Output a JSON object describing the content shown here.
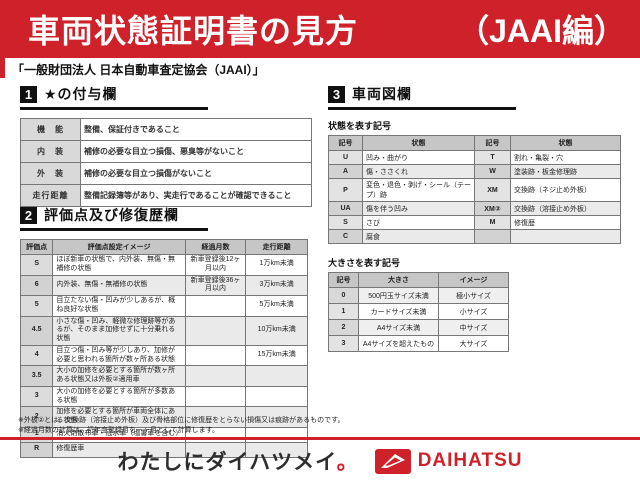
{
  "banner": {
    "title": "車両状態証明書の見方",
    "edition": "（JAAI編）"
  },
  "subtitle": "「一般財団法人 日本自動車査定協会（JAAI）」",
  "section1": {
    "number": "1",
    "title": "★の付与欄",
    "table": {
      "rows": [
        [
          "機　能",
          "整備、保証付きであること"
        ],
        [
          "内　装",
          "補修の必要な目立つ損傷、悪臭等がないこと"
        ],
        [
          "外　装",
          "補修の必要な目立つ損傷がないこと"
        ],
        [
          "走行距離",
          "整備記録簿等があり、実走行であることが確認できること"
        ]
      ]
    }
  },
  "section2": {
    "number": "2",
    "title": "評価点及び修復歴欄",
    "table": {
      "headers": [
        "評価点",
        "評価点設定イメージ",
        "経過月数",
        "走行距離"
      ],
      "rows": [
        [
          "S",
          "ほぼ新車の状態で、内外装、無傷・無補修の状態",
          "新車登録後12ヶ月以内",
          "1万km未満"
        ],
        [
          "6",
          "内外装、無傷・無補修の状態",
          "新車登録後36ヶ月以内",
          "3万km未満"
        ],
        [
          "5",
          "目立たない傷・凹みが少しあるが、概ね良好な状態",
          "",
          "5万km未満"
        ],
        [
          "4.5",
          "小さな傷・凹み、軽微な修理跡等があるが、そのまま加修せずに十分乗れる状態",
          "",
          "10万km未満"
        ],
        [
          "4",
          "目立つ傷・凹み等が少しあり、加修が必要と思われる箇所が数ヶ所ある状態",
          "",
          "15万km未満"
        ],
        [
          "3.5",
          "大小の加修を必要とする箇所が数ヶ所ある状態又は外板②適用車",
          "",
          ""
        ],
        [
          "3",
          "大小の加修を必要とする箇所が多数ある状態",
          "",
          ""
        ],
        [
          "2",
          "加修を必要とする箇所が車両全体にある状態",
          "",
          ""
        ],
        [
          "1",
          "消火剤散布車・冠水車（塩害車を含む）",
          "",
          ""
        ],
        [
          "R",
          "修復歴車",
          "",
          ""
        ]
      ]
    }
  },
  "section3": {
    "number": "3",
    "title": "車両図欄",
    "condition_label": "状態を表す記号",
    "condition_table": {
      "headers": [
        "記号",
        "状態",
        "記号",
        "状態"
      ],
      "rows": [
        [
          "U",
          "凹み・曲がり",
          "T",
          "割れ・亀裂・穴"
        ],
        [
          "A",
          "傷・ささくれ",
          "W",
          "塗装跡・板金修理跡"
        ],
        [
          "P",
          "変色・退色・剥げ・シール（テープ）跡",
          "XM",
          "交換跡（ネジ止め外板）"
        ],
        [
          "UA",
          "傷を伴う凹み",
          "XM②",
          "交換跡（溶接止め外板）"
        ],
        [
          "S",
          "さび",
          "M",
          "修復歴"
        ],
        [
          "C",
          "腐食",
          "",
          ""
        ]
      ]
    },
    "size_label": "大きさを表す記号",
    "size_table": {
      "headers": [
        "記号",
        "大きさ",
        "イメージ"
      ],
      "rows": [
        [
          "0",
          "500円玉サイズ未満",
          "極小サイズ"
        ],
        [
          "1",
          "カードサイズ未満",
          "小サイズ"
        ],
        [
          "2",
          "A4サイズ未満",
          "中サイズ"
        ],
        [
          "3",
          "A4サイズを超えたもの",
          "大サイズ"
        ]
      ]
    }
  },
  "notes": [
    "※外板②とは、交換跡（溶接止め外板）及び骨格部位に修復歴をとらない損傷又は痕跡があるものです。",
    "※経過月数の計算は、初年度登録月を一ヶ月として計算します。"
  ],
  "footer": {
    "tagline": "わたしにダイハツメイ",
    "tagline_period": "。",
    "brand": "DAIHATSU"
  },
  "colors": {
    "accent_red": "#cf2129",
    "section_black": "#111111",
    "header_gray": "#c6c6c6"
  }
}
